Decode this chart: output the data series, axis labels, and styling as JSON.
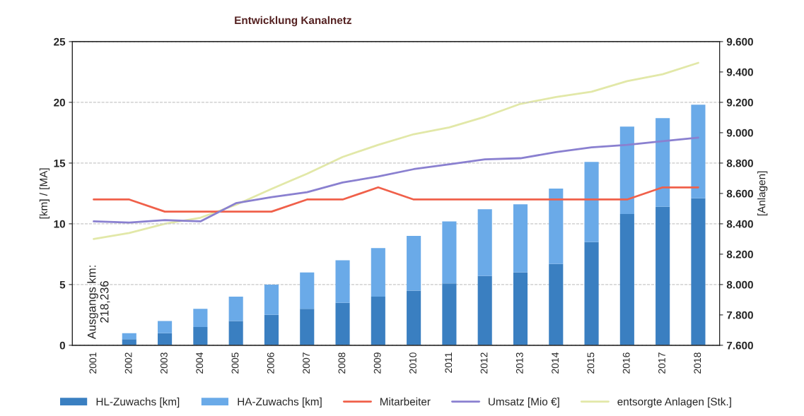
{
  "chart_data": {
    "type": "bar",
    "title": "Entwicklung Kanalnetz",
    "ylabel": "[km] / [MA]",
    "y2label": "[Anlagen]",
    "categories": [
      "2001",
      "2002",
      "2003",
      "2004",
      "2005",
      "2006",
      "2007",
      "2008",
      "2009",
      "2010",
      "2011",
      "2012",
      "2013",
      "2014",
      "2015",
      "2016",
      "2017",
      "2018"
    ],
    "stacked": true,
    "grid": "y",
    "legend": "bottom",
    "ylim": [
      0,
      25
    ],
    "yticks": [
      0,
      5,
      10,
      15,
      20,
      25
    ],
    "y2lim": [
      7600,
      9600
    ],
    "y2ticks": [
      {
        "value": 7600,
        "label": "7.600"
      },
      {
        "value": 7800,
        "label": "7.800"
      },
      {
        "value": 8000,
        "label": "8.000"
      },
      {
        "value": 8200,
        "label": "8.200"
      },
      {
        "value": 8400,
        "label": "8.400"
      },
      {
        "value": 8600,
        "label": "8.600"
      },
      {
        "value": 8800,
        "label": "8.800"
      },
      {
        "value": 9000,
        "label": "9.000"
      },
      {
        "value": 9200,
        "label": "9.200"
      },
      {
        "value": 9400,
        "label": "9.400"
      },
      {
        "value": 9600,
        "label": "9.600"
      }
    ],
    "annotations": [
      "Ausgangs km:\n218,236"
    ],
    "series": [
      {
        "name": "HL-Zuwachs [km]",
        "color": "#3a7fc1",
        "values": [
          null,
          0.5,
          1,
          1.5,
          2,
          2.5,
          3,
          3.5,
          4,
          4.5,
          5.1,
          5.7,
          6.0,
          6.7,
          8.5,
          10.8,
          11.4,
          12.1
        ]
      },
      {
        "name": "HA-Zuwachs [km]",
        "color": "#6aaae8",
        "values": [
          null,
          0.5,
          1,
          1.5,
          2,
          2.5,
          3,
          3.5,
          4,
          4.5,
          5.1,
          5.5,
          5.6,
          6.2,
          6.6,
          7.2,
          7.3,
          7.7
        ]
      },
      {
        "name": "Mitarbeiter",
        "type": "line",
        "color": "#f0604a",
        "values": [
          12,
          12,
          11,
          11,
          11,
          11,
          12,
          12,
          13,
          12,
          12,
          12,
          12,
          12,
          12,
          12,
          13,
          13
        ]
      },
      {
        "name": "Umsatz [Mio €]",
        "type": "line",
        "color": "#8a80d0",
        "values": [
          10.2,
          10.1,
          10.3,
          10.2,
          11.7,
          12.2,
          12.6,
          13.4,
          13.9,
          14.5,
          14.9,
          15.3,
          15.4,
          15.9,
          16.3,
          16.5,
          16.8,
          17.1
        ]
      },
      {
        "name": "entsorgte Anlagen [Stk.]",
        "type": "line",
        "axis": "y2",
        "color": "#e2e8a8",
        "values": [
          8300,
          8340,
          8400,
          8440,
          8525,
          8630,
          8730,
          8840,
          8920,
          8990,
          9035,
          9105,
          9190,
          9235,
          9270,
          9340,
          9385,
          9460
        ]
      }
    ]
  }
}
